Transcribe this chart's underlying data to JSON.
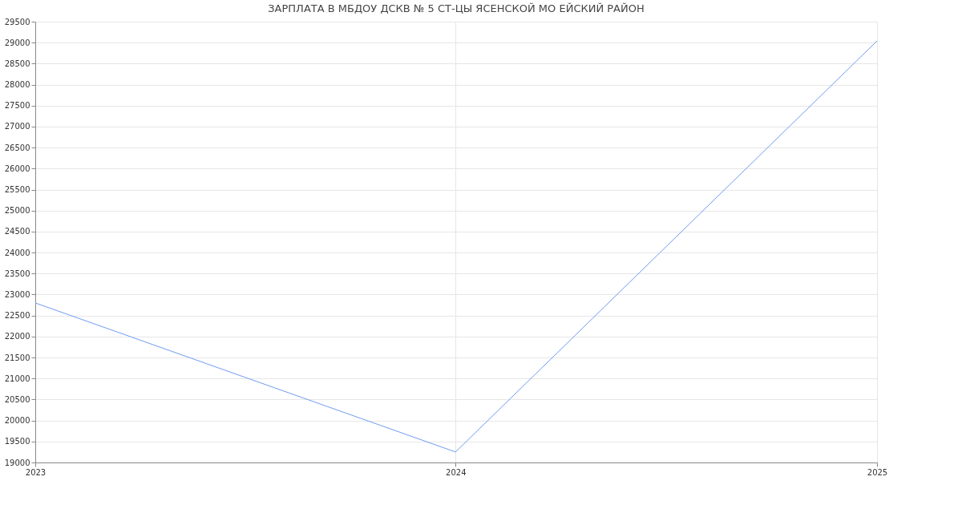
{
  "chart_data": {
    "type": "line",
    "title": "ЗАРПЛАТА В МБДОУ ДСКВ № 5 СТ-ЦЫ ЯСЕНСКОЙ МО ЕЙСКИЙ РАЙОН",
    "x": [
      "2023",
      "2024",
      "2025"
    ],
    "series": [
      {
        "color": "#6f9bf2",
        "values": [
          22800,
          19250,
          29040
        ]
      }
    ],
    "ylim": [
      19000,
      29500
    ],
    "yticks": [
      19000,
      19500,
      20000,
      20500,
      21000,
      21500,
      22000,
      22500,
      23000,
      23500,
      24000,
      24500,
      25000,
      25500,
      26000,
      26500,
      27000,
      27500,
      28000,
      28500,
      29000,
      29500
    ],
    "xlim": [
      "2023",
      "2025"
    ],
    "xticks": [
      "2023",
      "2024",
      "2025"
    ],
    "grid": true,
    "legend": false,
    "marker": "none",
    "line_style": "solid"
  }
}
